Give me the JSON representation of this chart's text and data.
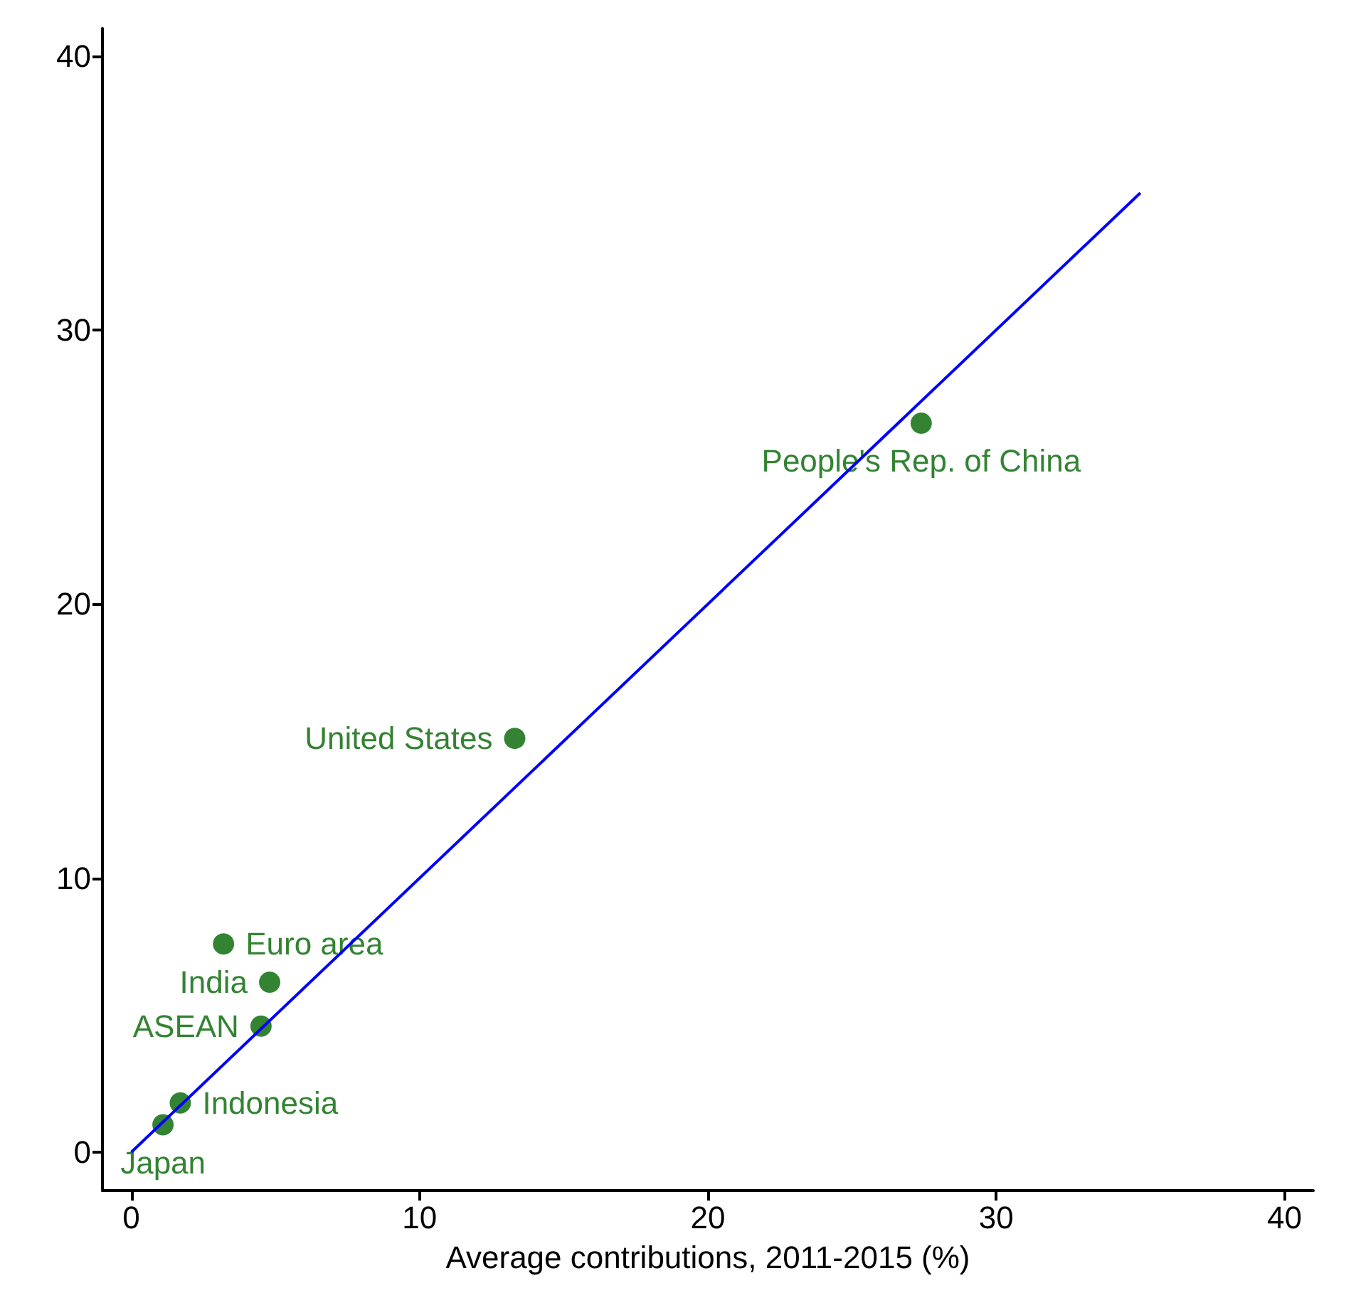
{
  "chart_data": {
    "type": "scatter",
    "xlabel": "Average contributions, 2011-2015 (%)",
    "xlim": [
      -1,
      41
    ],
    "ylim": [
      -1.4,
      41
    ],
    "xticks": [
      0,
      10,
      20,
      30,
      40
    ],
    "yticks": [
      0,
      10,
      20,
      30,
      40
    ],
    "grid": false,
    "marker": "circle",
    "series": [
      {
        "color": "#006400",
        "x": [
          27.4,
          13.3,
          3.2,
          4.8,
          4.5,
          1.7,
          1.1
        ],
        "values": [
          26.6,
          15.1,
          7.6,
          6.2,
          4.6,
          1.8,
          1.0
        ],
        "value_labels": [
          "People's Rep. of China",
          "United States",
          "Euro area",
          "India",
          "ASEAN",
          "Indonesia",
          "Japan"
        ]
      },
      {
        "type": "line",
        "color": "#0000ff",
        "x": [
          0,
          35
        ],
        "values": [
          0,
          35
        ],
        "marker": "none",
        "line_style": "solid"
      }
    ]
  }
}
